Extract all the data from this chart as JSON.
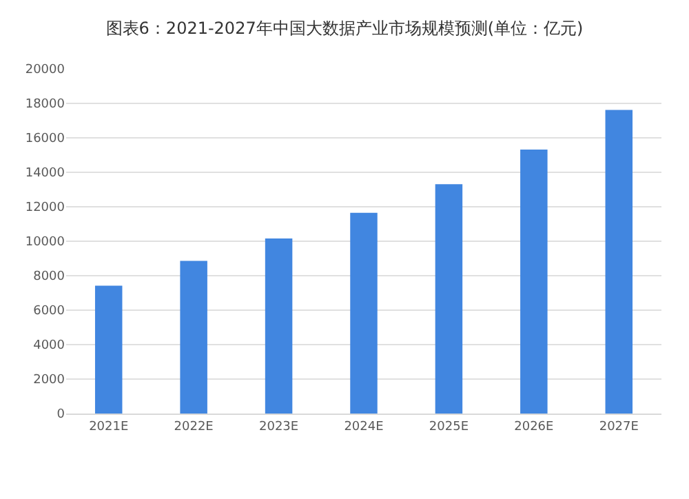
{
  "chart_data": {
    "type": "bar",
    "title": "图表6：2021-2027年中国大数据产业市场规模预测(单位：亿元)",
    "categories": [
      "2021E",
      "2022E",
      "2023E",
      "2024E",
      "2025E",
      "2026E",
      "2027E"
    ],
    "values": [
      7420,
      8860,
      10160,
      11650,
      13310,
      15320,
      17620
    ],
    "color": "#4186e0",
    "ylim": [
      0,
      20000
    ],
    "yticks": [
      0,
      2000,
      4000,
      6000,
      8000,
      10000,
      12000,
      14000,
      16000,
      18000,
      20000
    ],
    "grid": "y"
  }
}
